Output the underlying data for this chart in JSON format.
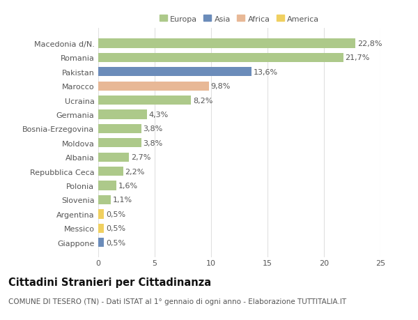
{
  "categories": [
    "Macedonia d/N.",
    "Romania",
    "Pakistan",
    "Marocco",
    "Ucraina",
    "Germania",
    "Bosnia-Erzegovina",
    "Moldova",
    "Albania",
    "Repubblica Ceca",
    "Polonia",
    "Slovenia",
    "Argentina",
    "Messico",
    "Giappone"
  ],
  "values": [
    22.8,
    21.7,
    13.6,
    9.8,
    8.2,
    4.3,
    3.8,
    3.8,
    2.7,
    2.2,
    1.6,
    1.1,
    0.5,
    0.5,
    0.5
  ],
  "labels": [
    "22,8%",
    "21,7%",
    "13,6%",
    "9,8%",
    "8,2%",
    "4,3%",
    "3,8%",
    "3,8%",
    "2,7%",
    "2,2%",
    "1,6%",
    "1,1%",
    "0,5%",
    "0,5%",
    "0,5%"
  ],
  "continents": [
    "Europa",
    "Europa",
    "Asia",
    "Africa",
    "Europa",
    "Europa",
    "Europa",
    "Europa",
    "Europa",
    "Europa",
    "Europa",
    "Europa",
    "America",
    "America",
    "Asia"
  ],
  "colors": {
    "Europa": "#adc98a",
    "Asia": "#6b8cba",
    "Africa": "#e8b896",
    "America": "#f0d060"
  },
  "legend_items": [
    "Europa",
    "Asia",
    "Africa",
    "America"
  ],
  "legend_colors": [
    "#adc98a",
    "#6b8cba",
    "#e8b896",
    "#f0d060"
  ],
  "title": "Cittadini Stranieri per Cittadinanza",
  "subtitle": "COMUNE DI TESERO (TN) - Dati ISTAT al 1° gennaio di ogni anno - Elaborazione TUTTITALIA.IT",
  "xlim": [
    0,
    25
  ],
  "xticks": [
    0,
    5,
    10,
    15,
    20,
    25
  ],
  "bg_color": "#ffffff",
  "grid_color": "#e0e0e0",
  "bar_height": 0.65,
  "label_fontsize": 8.0,
  "tick_fontsize": 8.0,
  "title_fontsize": 10.5,
  "subtitle_fontsize": 7.5
}
